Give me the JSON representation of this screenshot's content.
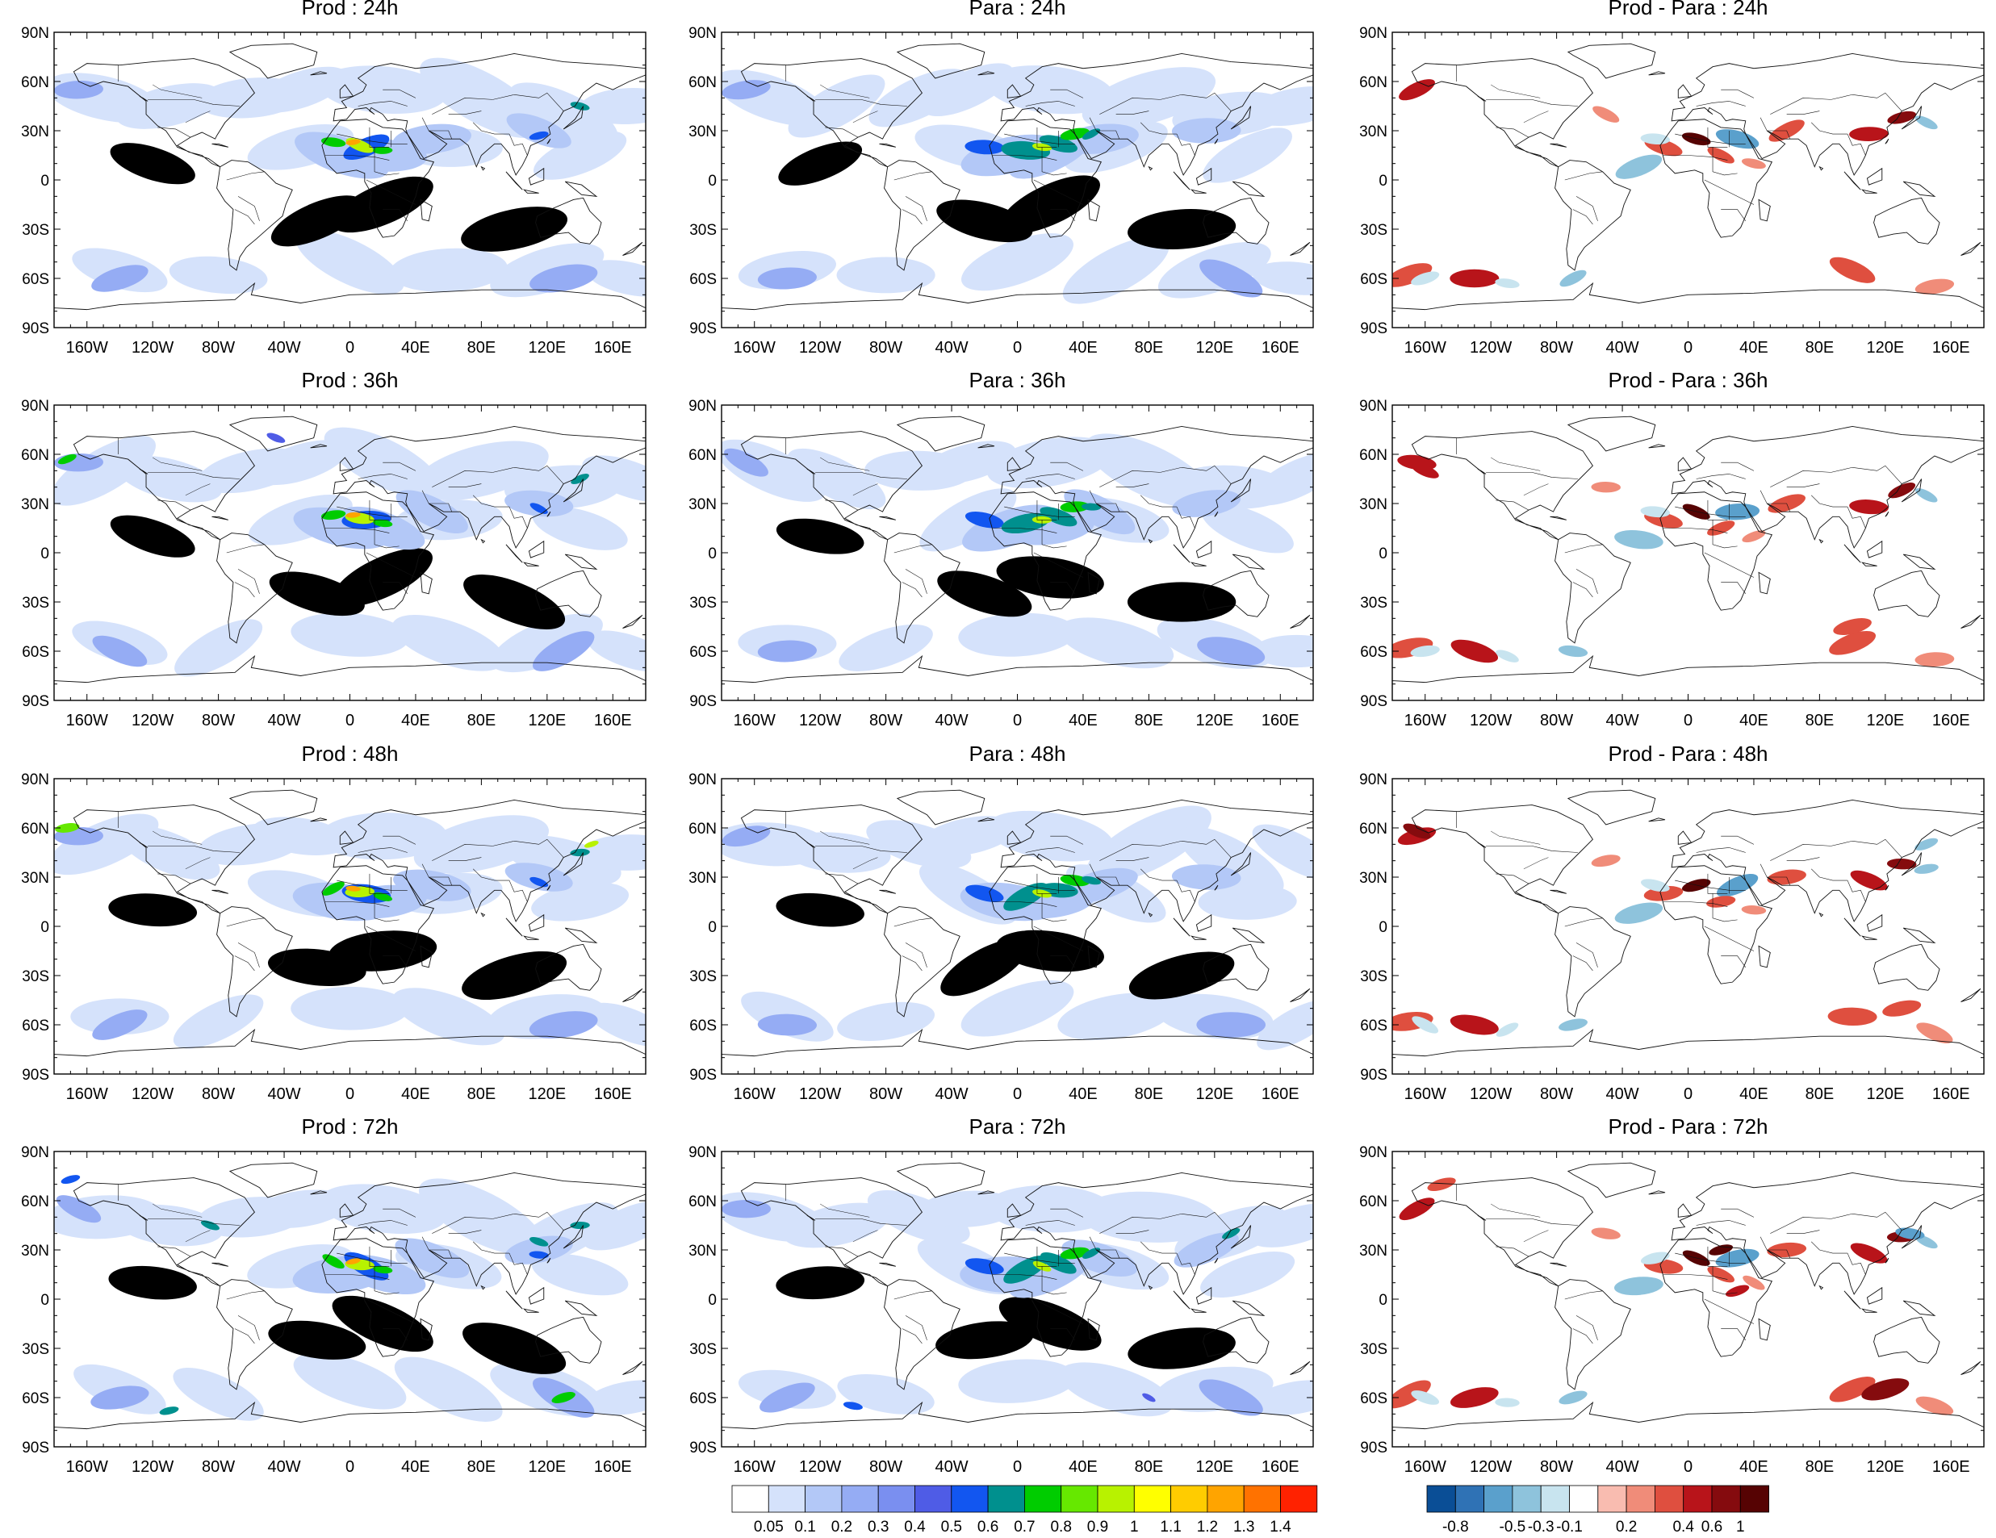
{
  "panels": [
    {
      "title": "Prod : 24h",
      "type": "prod"
    },
    {
      "title": "Para : 24h",
      "type": "para"
    },
    {
      "title": "Prod - Para : 24h",
      "type": "diff"
    },
    {
      "title": "Prod : 36h",
      "type": "prod"
    },
    {
      "title": "Para : 36h",
      "type": "para"
    },
    {
      "title": "Prod - Para : 36h",
      "type": "diff"
    },
    {
      "title": "Prod : 48h",
      "type": "prod"
    },
    {
      "title": "Para : 48h",
      "type": "para"
    },
    {
      "title": "Prod - Para : 48h",
      "type": "diff"
    },
    {
      "title": "Prod : 72h",
      "type": "prod"
    },
    {
      "title": "Para : 72h",
      "type": "para"
    },
    {
      "title": "Prod - Para : 72h",
      "type": "diff"
    }
  ],
  "lat_labels": [
    "90N",
    "60N",
    "30N",
    "0",
    "30S",
    "60S",
    "90S"
  ],
  "lon_labels": [
    "160W",
    "120W",
    "80W",
    "40W",
    "0",
    "40E",
    "80E",
    "120E",
    "160E"
  ],
  "colorbar_main": {
    "colors": [
      "#ffffff",
      "#d5e2fb",
      "#b3c8f7",
      "#95acf4",
      "#7a8ff0",
      "#4f5ce6",
      "#1256f0",
      "#00908e",
      "#00cc00",
      "#66e800",
      "#b8f200",
      "#ffff00",
      "#ffcc00",
      "#ffa400",
      "#ff7200",
      "#ff2200"
    ],
    "labels": [
      "0.05",
      "0.1",
      "0.2",
      "0.3",
      "0.4",
      "0.5",
      "0.6",
      "0.7",
      "0.8",
      "0.9",
      "1",
      "1.1",
      "1.2",
      "1.3",
      "1.4"
    ]
  },
  "colorbar_diff": {
    "colors": [
      "#0a4e96",
      "#2f72b5",
      "#5aa0cc",
      "#8ec3dc",
      "#c8e4ef",
      "#ffffff",
      "#f9bcb0",
      "#f08c79",
      "#df4f3f",
      "#b8141a",
      "#850b0e",
      "#560303"
    ],
    "labels": [
      "-0.8",
      "-0.5",
      "-0.3",
      "-0.1",
      "0.2",
      "0.4",
      "0.6",
      "1"
    ]
  }
}
